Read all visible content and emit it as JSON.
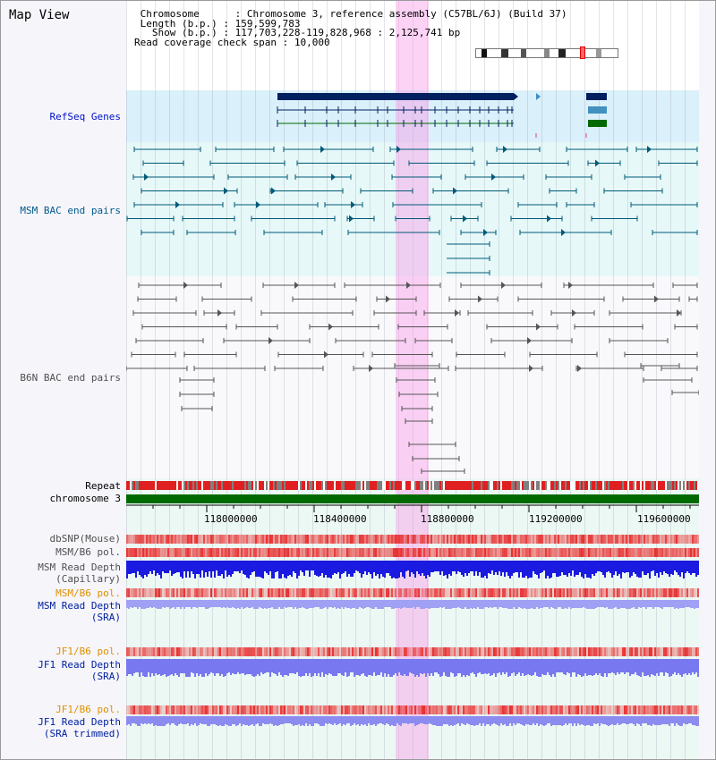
{
  "page_title": "Map View",
  "header": {
    "chromosome_key": "Chromosome",
    "chromosome_value": "Chromosome 3, reference assembly (C57BL/6J) (Build 37)",
    "length_key": "Length (b.p.)",
    "length_value": "159,599,783",
    "show_key": "Show (b.p.)",
    "show_value": "117,703,228-119,828,968 : 2,125,741 bp",
    "coverage_key": "Read coverage check span",
    "coverage_value": "10,000"
  },
  "tracks": {
    "refseq": "RefSeq Genes",
    "msm_bac": "MSM BAC end pairs",
    "b6n_bac": "B6N BAC end pairs",
    "repeat": "Repeat",
    "chromosome": "chromosome 3",
    "dbsnp": "dbSNP(Mouse)",
    "msm_b6_pol_1": "MSM/B6 pol.",
    "msm_read_depth_cap_1": "MSM Read Depth",
    "msm_read_depth_cap_2": "(Capillary)",
    "msm_b6_pol_2": "MSM/B6 pol.",
    "msm_read_depth_sra_1": "MSM Read Depth",
    "msm_read_depth_sra_2": "(SRA)",
    "jf1_b6_pol_1": "JF1/B6 pol.",
    "jf1_read_depth_sra_1": "JF1 Read Depth",
    "jf1_read_depth_sra_2": "(SRA)",
    "jf1_b6_pol_2": "JF1/B6 pol.",
    "jf1_read_depth_trim_1": "JF1 Read Depth",
    "jf1_read_depth_trim_2": "(SRA trimmed)"
  },
  "axis": {
    "ticks": [
      "118000000",
      "118400000",
      "118800000",
      "119200000",
      "119600000"
    ]
  },
  "colors": {
    "refseq_dark": "#002060",
    "refseq_mid": "#4090c0",
    "refseq_green": "#006a00",
    "msm_bac": "#005a78",
    "b6n_bac": "#555555",
    "repeat_red": "#e02020",
    "repeat_grey": "#808080",
    "chromosome_green": "#006a00",
    "depth_blue": "#1a1ae0",
    "depth_light": "#7878f0",
    "pol_red": "#f04040"
  }
}
